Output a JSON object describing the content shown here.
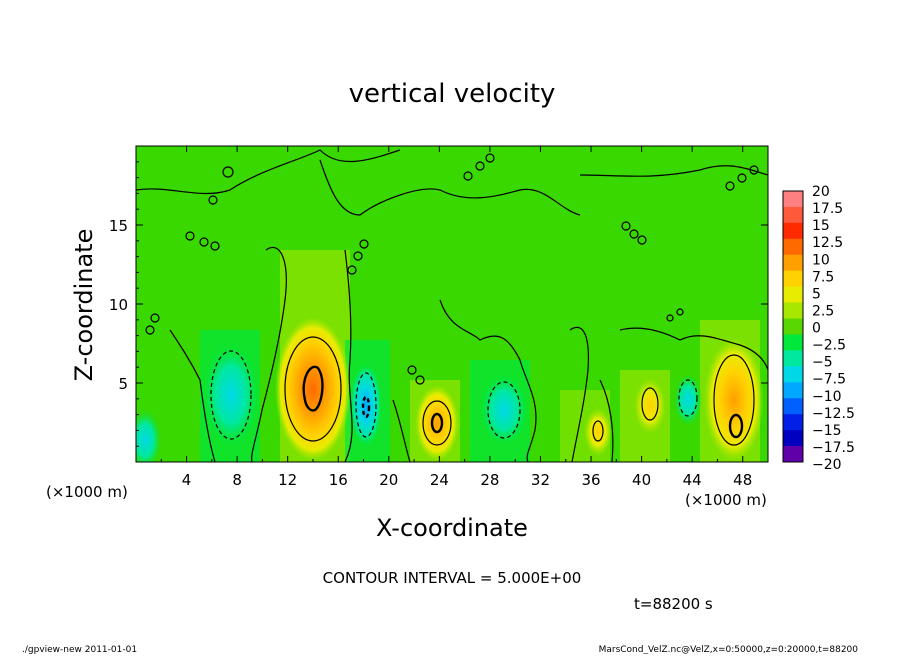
{
  "chart_data": {
    "type": "heatmap",
    "title": "vertical velocity",
    "xlabel": "X-coordinate",
    "ylabel": "Z-coordinate",
    "x_unit_labels": [
      "(×1000 m)",
      "(×1000 m)"
    ],
    "xlim": [
      0,
      50
    ],
    "ylim": [
      0,
      20
    ],
    "x_ticks": [
      4,
      8,
      12,
      16,
      20,
      24,
      28,
      32,
      36,
      40,
      44,
      48
    ],
    "y_ticks": [
      5,
      10,
      15
    ],
    "contour_interval_text": "CONTOUR INTERVAL = 5.000E+00",
    "time_text": "t=88200 s",
    "colorbar": {
      "labels": [
        "20",
        "17.5",
        "15",
        "12.5",
        "10",
        "7.5",
        "5",
        "2.5",
        "0",
        "-2.5",
        "-5",
        "-7.5",
        "-10",
        "-12.5",
        "-15",
        "-17.5",
        "-20"
      ],
      "colors": [
        "#ff8080",
        "#ff5a3c",
        "#ff2a00",
        "#ff6a00",
        "#ff9f00",
        "#ffd200",
        "#e8ec00",
        "#a8e800",
        "#58d800",
        "#00e83c",
        "#00e8a0",
        "#00d8e8",
        "#00a8ff",
        "#0060ff",
        "#0020e8",
        "#0000c0",
        "#6000a8"
      ]
    },
    "features": [
      {
        "type": "updraft",
        "x": 14,
        "z": 4.5,
        "peak": 12.5
      },
      {
        "type": "updraft",
        "x": 24,
        "z": 2.5,
        "peak": 10
      },
      {
        "type": "updraft",
        "x": 47.5,
        "z": 2.5,
        "peak": 10
      },
      {
        "type": "updraft",
        "x": 40.5,
        "z": 3.5,
        "peak": 5
      },
      {
        "type": "updraft",
        "x": 36.5,
        "z": 2.0,
        "peak": 5
      },
      {
        "type": "downdraft",
        "x": 7.5,
        "z": 4.0,
        "peak": -7.5
      },
      {
        "type": "downdraft",
        "x": 18.5,
        "z": 3.5,
        "peak": -10
      },
      {
        "type": "downdraft",
        "x": 28.5,
        "z": 3.5,
        "peak": -7.5
      },
      {
        "type": "downdraft",
        "x": 0.5,
        "z": 1.5,
        "peak": -7.5
      },
      {
        "type": "downdraft",
        "x": 43.5,
        "z": 4.0,
        "peak": -5
      }
    ]
  },
  "footer": {
    "left": "./gpview-new   2011-01-01",
    "right": "MarsCond_VelZ.nc@VelZ,x=0:50000,z=0:20000,t=88200"
  },
  "colors": {
    "background_field": "#38d800",
    "axis": "#000000"
  }
}
